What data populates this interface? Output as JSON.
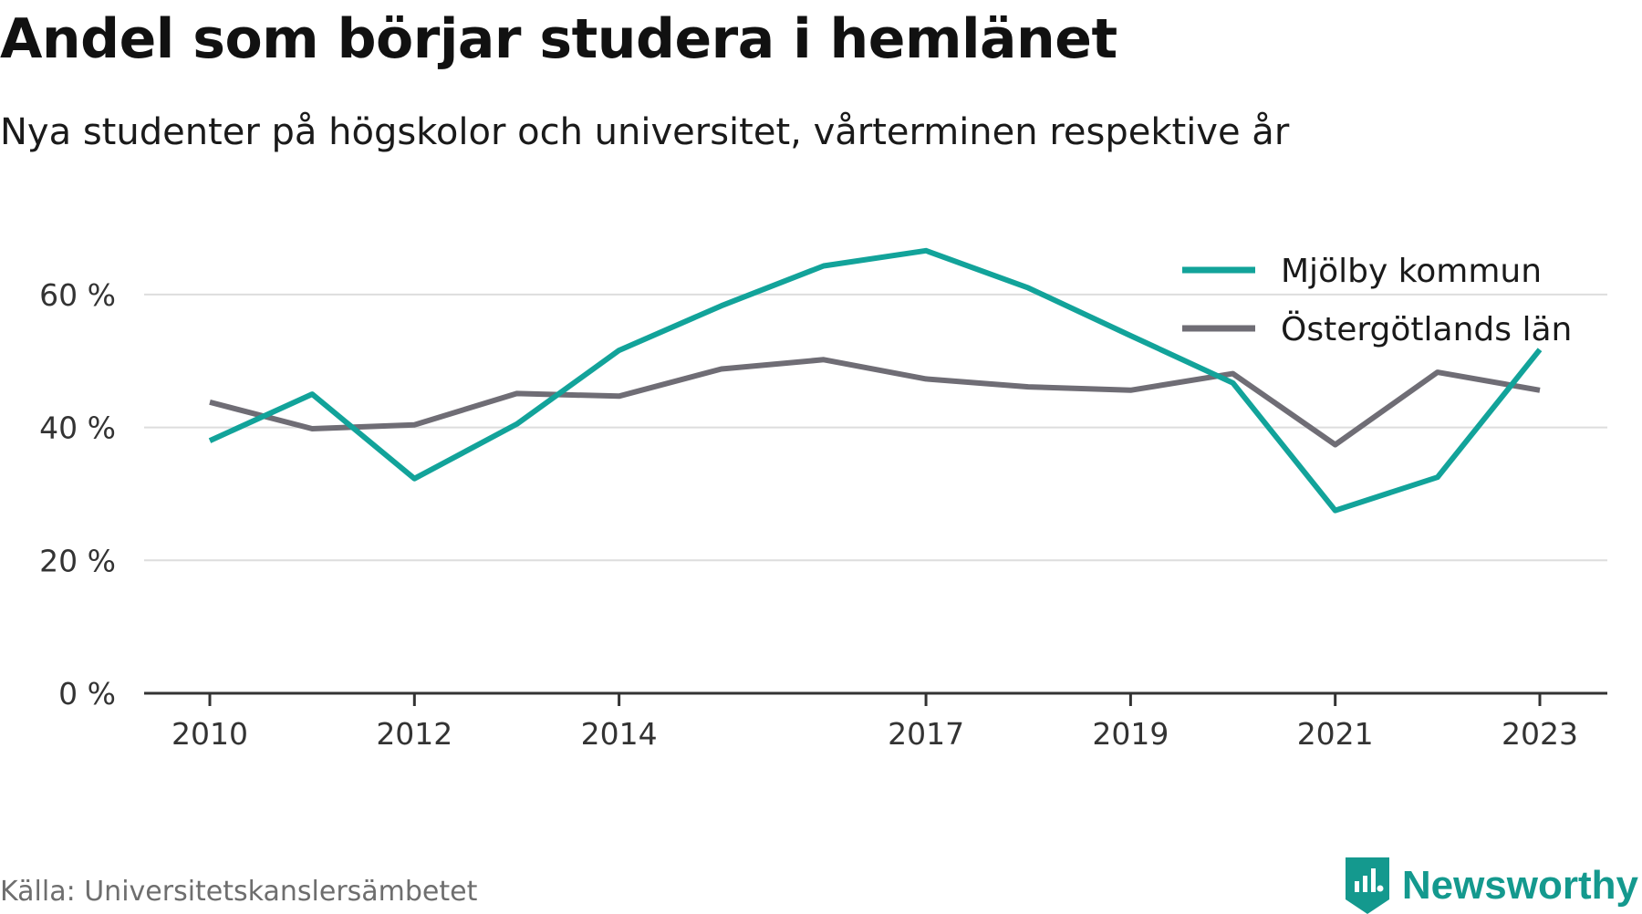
{
  "header": {
    "title": "Andel som börjar studera i hemlänet",
    "subtitle": "Nya studenter på högskolor och universitet, vårterminen respektive år"
  },
  "footer": {
    "source": "Källa: Universitetskanslersämbetet",
    "brand": "Newsworthy",
    "brand_icon": "newsworthy-logo-icon"
  },
  "colors": {
    "mjolby": "#12a39a",
    "ostergotland": "#6f6d75",
    "grid": "#dddddd",
    "axis": "#333333",
    "brand": "#14998e"
  },
  "chart_data": {
    "type": "line",
    "x": [
      2010,
      2011,
      2012,
      2013,
      2014,
      2015,
      2016,
      2017,
      2018,
      2019,
      2020,
      2021,
      2022,
      2023
    ],
    "x_tick_labels": [
      "2010",
      "2012",
      "2014",
      "2017",
      "2019",
      "2021",
      "2023"
    ],
    "y_tick_values": [
      0,
      20,
      40,
      60
    ],
    "y_tick_labels": [
      "0 %",
      "20 %",
      "40 %",
      "60 %"
    ],
    "ylim": [
      0,
      70
    ],
    "grid": true,
    "legend_position": "top-right",
    "series": [
      {
        "name": "Mjölby kommun",
        "color_key": "mjolby",
        "values": [
          38.0,
          45.0,
          32.3,
          40.5,
          51.6,
          58.3,
          64.3,
          66.6,
          61.0,
          53.8,
          46.7,
          27.5,
          32.5,
          51.7
        ]
      },
      {
        "name": "Östergötlands län",
        "color_key": "ostergotland",
        "values": [
          43.8,
          39.8,
          40.4,
          45.1,
          44.7,
          48.8,
          50.2,
          47.3,
          46.1,
          45.6,
          48.1,
          37.4,
          48.3,
          45.6
        ]
      }
    ]
  }
}
